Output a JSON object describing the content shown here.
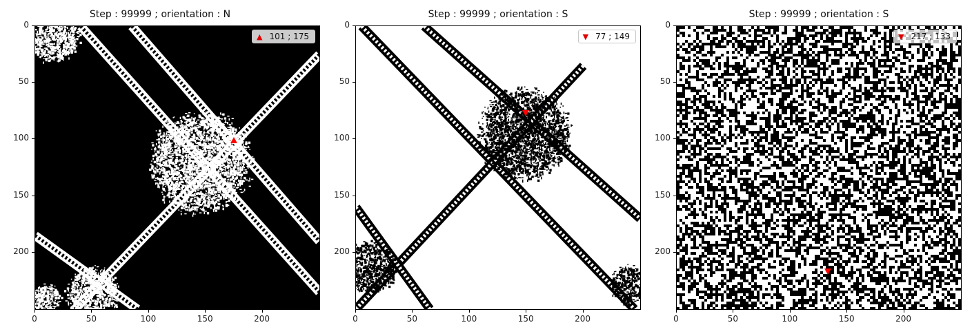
{
  "chart_data": [
    {
      "type": "heatmap",
      "title": "Step : 99999 ; orientation : N",
      "xlim": [
        0,
        249
      ],
      "ylim": [
        249,
        0
      ],
      "xticks": [
        "0",
        "50",
        "100",
        "150",
        "200"
      ],
      "yticks": [
        "0",
        "50",
        "100",
        "150",
        "200"
      ],
      "legend_label": "101 ; 175",
      "legend_position": "top-right",
      "ant": {
        "row": 101,
        "col": 175,
        "marker": "triangle-up",
        "color": "#ff0000"
      },
      "background": "#000000",
      "foreground": "#ffffff"
    },
    {
      "type": "heatmap",
      "title": "Step : 99999 ; orientation : S",
      "xlim": [
        0,
        249
      ],
      "ylim": [
        249,
        0
      ],
      "xticks": [
        "0",
        "50",
        "100",
        "150",
        "200"
      ],
      "yticks": [
        "0",
        "50",
        "100",
        "150",
        "200"
      ],
      "legend_label": "77 ; 149",
      "legend_position": "top-right",
      "ant": {
        "row": 77,
        "col": 149,
        "marker": "triangle-down",
        "color": "#ff0000"
      },
      "background": "#ffffff",
      "foreground": "#000000"
    },
    {
      "type": "heatmap",
      "title": "Step : 99999 ; orientation : S",
      "xlim": [
        0,
        249
      ],
      "ylim": [
        249,
        0
      ],
      "xticks": [
        "0",
        "50",
        "100",
        "150",
        "200"
      ],
      "yticks": [
        "0",
        "50",
        "100",
        "150",
        "200"
      ],
      "legend_label": "217 ; 133",
      "legend_position": "top-right",
      "ant": {
        "row": 217,
        "col": 133,
        "marker": "triangle-down",
        "color": "#ff0000"
      },
      "background": "mixed",
      "foreground": "mixed"
    }
  ]
}
